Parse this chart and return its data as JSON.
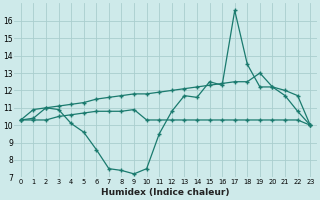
{
  "xlabel": "Humidex (Indice chaleur)",
  "x": [
    0,
    1,
    2,
    3,
    4,
    5,
    6,
    7,
    8,
    9,
    10,
    11,
    12,
    13,
    14,
    15,
    16,
    17,
    18,
    19,
    20,
    21,
    22,
    23
  ],
  "line1": [
    10.3,
    10.9,
    11.0,
    10.9,
    10.1,
    9.6,
    8.6,
    7.5,
    7.4,
    7.2,
    7.5,
    9.5,
    10.8,
    11.7,
    11.6,
    12.5,
    12.3,
    16.6,
    13.5,
    12.2,
    12.2,
    11.7,
    10.8,
    10.0
  ],
  "line2": [
    10.3,
    10.4,
    11.0,
    11.1,
    11.2,
    11.3,
    11.5,
    11.6,
    11.7,
    11.8,
    11.8,
    11.9,
    12.0,
    12.1,
    12.2,
    12.3,
    12.4,
    12.5,
    12.5,
    13.0,
    12.2,
    12.0,
    11.7,
    10.0
  ],
  "line3": [
    10.3,
    10.3,
    10.3,
    10.5,
    10.6,
    10.7,
    10.8,
    10.8,
    10.8,
    10.9,
    10.3,
    10.3,
    10.3,
    10.3,
    10.3,
    10.3,
    10.3,
    10.3,
    10.3,
    10.3,
    10.3,
    10.3,
    10.3,
    10.0
  ],
  "line_color": "#1a7a6e",
  "bg_color": "#ceeaea",
  "grid_color": "#aacece",
  "ylim": [
    7,
    17
  ],
  "yticks": [
    7,
    8,
    9,
    10,
    11,
    12,
    13,
    14,
    15,
    16
  ],
  "xtick_labels": [
    "0",
    "1",
    "2",
    "3",
    "4",
    "5",
    "6",
    "7",
    "8",
    "9",
    "10",
    "11",
    "12",
    "13",
    "14",
    "15",
    "16",
    "17",
    "18",
    "19",
    "20",
    "21",
    "22",
    "23"
  ]
}
